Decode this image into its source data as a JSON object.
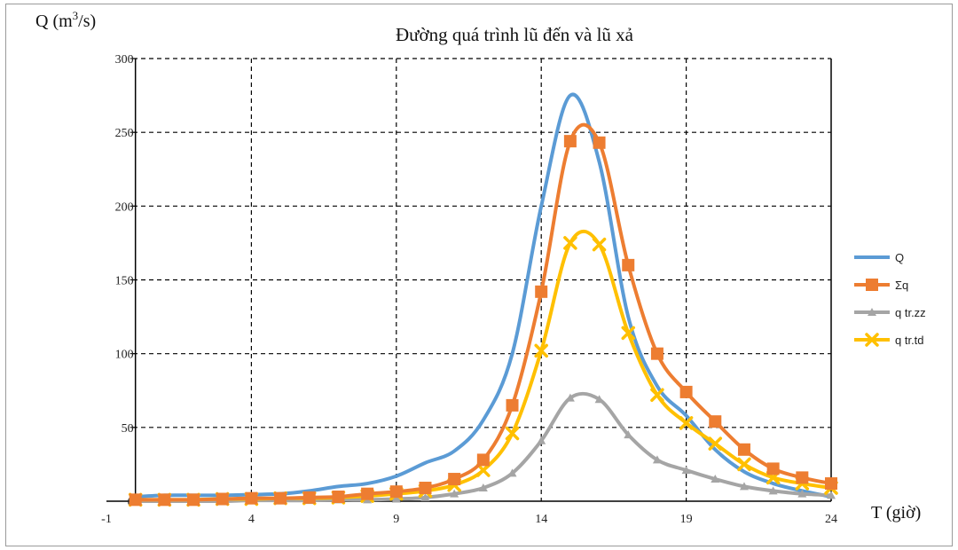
{
  "chart_data": {
    "type": "line",
    "title": "Đường quá trình lũ đến và lũ xả",
    "ylabel_main": "Q (m",
    "ylabel_sup": "3",
    "ylabel_tail": "/s)",
    "xlabel": "T (giờ)",
    "xlim": [
      -1,
      24
    ],
    "ylim": [
      0,
      300
    ],
    "xticks": [
      -1,
      4,
      9,
      14,
      19,
      24
    ],
    "yticks": [
      0,
      50,
      100,
      150,
      200,
      250,
      300
    ],
    "grid": true,
    "legend_position": "right",
    "series": [
      {
        "name": "Q",
        "color": "#5b9bd5",
        "marker": "none",
        "x": [
          0,
          1,
          2,
          3,
          4,
          5,
          6,
          7,
          8,
          9,
          10,
          11,
          12,
          13,
          14,
          15,
          16,
          17,
          18,
          19,
          20,
          21,
          22,
          23,
          24
        ],
        "y": [
          3,
          4,
          4,
          4,
          4.5,
          5,
          7,
          10,
          12,
          17,
          26,
          34,
          55,
          100,
          200,
          275,
          230,
          125,
          78,
          58,
          35,
          20,
          12,
          7,
          3
        ]
      },
      {
        "name": "Σq",
        "color": "#ed7d31",
        "marker": "square",
        "x": [
          0,
          1,
          2,
          3,
          4,
          5,
          6,
          7,
          8,
          9,
          10,
          11,
          12,
          13,
          14,
          15,
          16,
          17,
          18,
          19,
          20,
          21,
          22,
          23,
          24
        ],
        "y": [
          1,
          1,
          1,
          1.5,
          2,
          2,
          2.5,
          3,
          5,
          6.5,
          9,
          15,
          28,
          65,
          142,
          244,
          243,
          160,
          100,
          74,
          54,
          35,
          22,
          16,
          12
        ]
      },
      {
        "name": "q tr.zz",
        "color": "#a5a5a5",
        "marker": "triangle",
        "x": [
          0,
          1,
          2,
          3,
          4,
          5,
          6,
          7,
          8,
          9,
          10,
          11,
          12,
          13,
          14,
          15,
          16,
          17,
          18,
          19,
          20,
          21,
          22,
          23,
          24
        ],
        "y": [
          0,
          0,
          0,
          0,
          0.5,
          0.5,
          0.5,
          1,
          1,
          1.5,
          2.5,
          5,
          9,
          19,
          41,
          70,
          69,
          45,
          28,
          21,
          15,
          10,
          7,
          5,
          4
        ]
      },
      {
        "name": "q tr.td",
        "color": "#ffc000",
        "marker": "x",
        "x": [
          0,
          1,
          2,
          3,
          4,
          5,
          6,
          7,
          8,
          9,
          10,
          11,
          12,
          13,
          14,
          15,
          16,
          17,
          18,
          19,
          20,
          21,
          22,
          23,
          24
        ],
        "y": [
          1,
          1,
          1,
          1.5,
          1.5,
          2,
          2,
          2.5,
          3.5,
          5,
          7,
          11,
          21,
          46,
          102,
          175,
          174,
          114,
          72,
          53,
          39,
          25,
          16,
          12,
          9
        ]
      }
    ]
  }
}
